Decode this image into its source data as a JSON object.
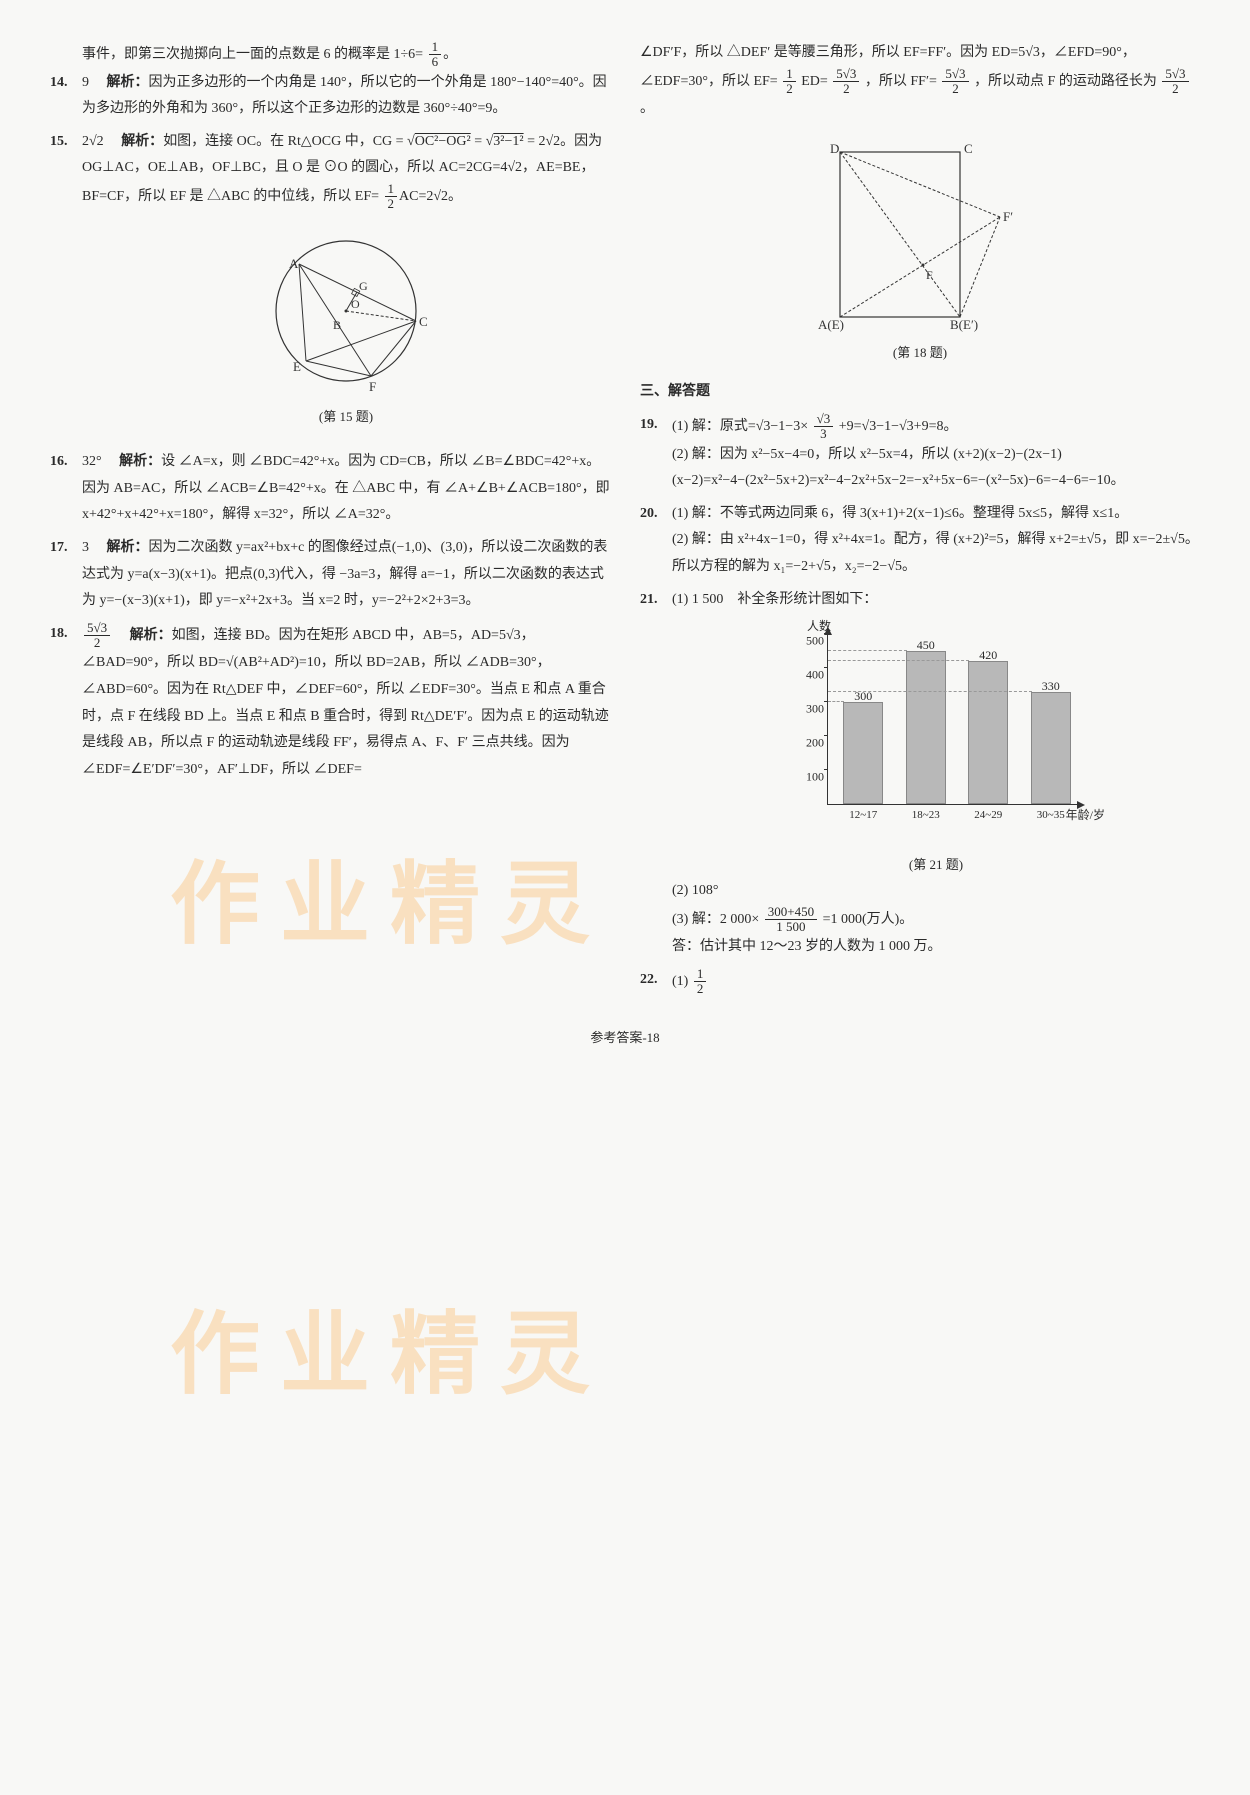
{
  "watermark_text": "作业精灵",
  "left_col": {
    "intro": "事件，即第三次抛掷向上一面的点数是 6 的概率是 1÷6=",
    "intro_frac": {
      "num": "1",
      "den": "6"
    },
    "q14": {
      "num": "14.",
      "ans": "9",
      "label": "解析：",
      "text": "因为正多边形的一个内角是 140°，所以它的一个外角是 180°−140°=40°。因为多边形的外角和为 360°，所以这个正多边形的边数是 360°÷40°=9。"
    },
    "q15": {
      "num": "15.",
      "ans": "2√2",
      "label": "解析：",
      "text1": "如图，连接 OC。在 Rt△OCG 中，CG = ",
      "sqrt1": "OC²−OG²",
      "mid1": " = ",
      "sqrt2": "3²−1²",
      "mid2": " = 2√2。因为 OG⊥AC，OE⊥AB，OF⊥BC，且 O 是 ⊙O 的圆心，所以 AC=2CG=4√2，AE=BE，BF=CF，所以 EF 是 △ABC 的中位线，所以 EF=",
      "frac1": {
        "num": "1",
        "den": "2"
      },
      "tail": "AC=2√2。",
      "caption": "(第 15 题)"
    },
    "q16": {
      "num": "16.",
      "ans": "32°",
      "label": "解析：",
      "text": "设 ∠A=x，则 ∠BDC=42°+x。因为 CD=CB，所以 ∠B=∠BDC=42°+x。因为 AB=AC，所以 ∠ACB=∠B=42°+x。在 △ABC 中，有 ∠A+∠B+∠ACB=180°，即 x+42°+x+42°+x=180°，解得 x=32°，所以 ∠A=32°。"
    },
    "q17": {
      "num": "17.",
      "ans": "3",
      "label": "解析：",
      "text": "因为二次函数 y=ax²+bx+c 的图像经过点(−1,0)、(3,0)，所以设二次函数的表达式为 y=a(x−3)(x+1)。把点(0,3)代入，得 −3a=3，解得 a=−1，所以二次函数的表达式为 y=−(x−3)(x+1)，即 y=−x²+2x+3。当 x=2 时，y=−2²+2×2+3=3。"
    },
    "q18": {
      "num": "18.",
      "ans_frac": {
        "num": "5√3",
        "den": "2"
      },
      "label": "解析：",
      "text": "如图，连接 BD。因为在矩形 ABCD 中，AB=5，AD=5√3，∠BAD=90°，所以 BD=√(AB²+AD²)=10，所以 BD=2AB，所以 ∠ADB=30°，∠ABD=60°。因为在 Rt△DEF 中，∠DEF=60°，所以 ∠EDF=30°。当点 E 和点 A 重合时，点 F 在线段 BD 上。当点 E 和点 B 重合时，得到 Rt△DE′F′。因为点 E 的运动轨迹是线段 AB，所以点 F 的运动轨迹是线段 FF′，易得点 A、F、F′ 三点共线。因为 ∠EDF=∠E′DF′=30°，AF′⊥DF，所以 ∠DEF="
    }
  },
  "right_col": {
    "q18_cont": {
      "text1": "∠DF′F，所以 △DEF′ 是等腰三角形，所以 EF=FF′。因为 ED=5√3，∠EFD=90°，∠EDF=30°，所以 EF=",
      "frac1": {
        "num": "1",
        "den": "2"
      },
      "mid1": "ED=",
      "frac2": {
        "num": "5√3",
        "den": "2"
      },
      "mid2": "，所以 FF′=",
      "frac3": {
        "num": "5√3",
        "den": "2"
      },
      "mid3": "，所以动点 F 的运动路径长为",
      "frac4": {
        "num": "5√3",
        "den": "2"
      },
      "tail": "。",
      "caption": "(第 18 题)",
      "diagram_labels": {
        "D": "D",
        "C": "C",
        "Fp": "F′",
        "F": "F",
        "AE": "A(E)",
        "BEp": "B(E′)"
      }
    },
    "section3": "三、解答题",
    "q19": {
      "num": "19.",
      "p1_label": "(1) 解：",
      "p1_text1": "原式=√3−1−3×",
      "p1_frac": {
        "num": "√3",
        "den": "3"
      },
      "p1_text2": "+9=√3−1−√3+9=8。",
      "p2_label": "(2) 解：",
      "p2_text": "因为 x²−5x−4=0，所以 x²−5x=4，所以 (x+2)(x−2)−(2x−1)(x−2)=x²−4−(2x²−5x+2)=x²−4−2x²+5x−2=−x²+5x−6=−(x²−5x)−6=−4−6=−10。"
    },
    "q20": {
      "num": "20.",
      "p1_label": "(1) 解：",
      "p1_text": "不等式两边同乘 6，得 3(x+1)+2(x−1)≤6。整理得 5x≤5，解得 x≤1。",
      "p2_label": "(2) 解：",
      "p2_text": "由 x²+4x−1=0，得 x²+4x=1。配方，得 (x+2)²=5，解得 x+2=±√5，即 x=−2±√5。所以方程的解为 x₁=−2+√5，x₂=−2−√5。"
    },
    "q21": {
      "num": "21.",
      "p1": "(1) 1 500　补全条形统计图如下：",
      "chart": {
        "ylabel": "人数",
        "xlabel": "年龄/岁",
        "yticks": [
          100,
          200,
          300,
          400,
          500
        ],
        "ymax": 500,
        "categories": [
          "12~17",
          "18~23",
          "24~29",
          "30~35"
        ],
        "values": [
          300,
          450,
          420,
          330
        ],
        "bar_color": "#b8b8b8",
        "bar_border": "#888888",
        "axis_color": "#333333",
        "bg_color": "transparent"
      },
      "caption": "(第 21 题)",
      "p2": "(2) 108°",
      "p3_label": "(3) 解：",
      "p3_pre": "2 000×",
      "p3_frac": {
        "num": "300+450",
        "den": "1 500"
      },
      "p3_post": "=1 000(万人)。",
      "p3_ans": "答：估计其中 12～23 岁的人数为 1 000 万。"
    },
    "q22": {
      "num": "22.",
      "p1": "(1) ",
      "frac": {
        "num": "1",
        "den": "2"
      }
    }
  },
  "footer": "参考答案-18"
}
